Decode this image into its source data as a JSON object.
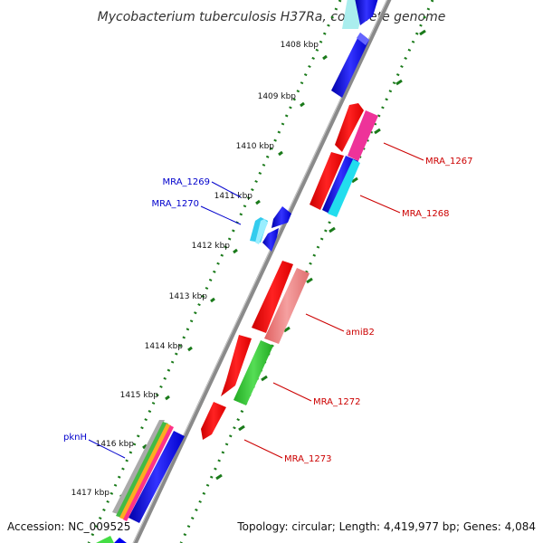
{
  "title": "Mycobacterium tuberculosis H37Ra, complete genome",
  "footer": {
    "accession": "Accession: NC_009525",
    "summary": "Topology: circular; Length: 4,419,977 bp; Genes: 4,084"
  },
  "colors": {
    "backbone": "#8a8a8a",
    "tick": "#1a7a1a",
    "label_reverse": "#0000cc",
    "label_forward": "#cc0000"
  },
  "ticks": [
    "1408 kbp",
    "1409 kbp",
    "1410 kbp",
    "1411 kbp",
    "1412 kbp",
    "1413 kbp",
    "1414 kbp",
    "1415 kbp",
    "1416 kbp",
    "1417 kbp"
  ],
  "gene_labels": {
    "MRA_1267": "MRA_1267",
    "MRA_1268": "MRA_1268",
    "MRA_1269": "MRA_1269",
    "MRA_1270": "MRA_1270",
    "amiB2": "amiB2",
    "MRA_1272": "MRA_1272",
    "MRA_1273": "MRA_1273",
    "pknH": "pknH"
  }
}
